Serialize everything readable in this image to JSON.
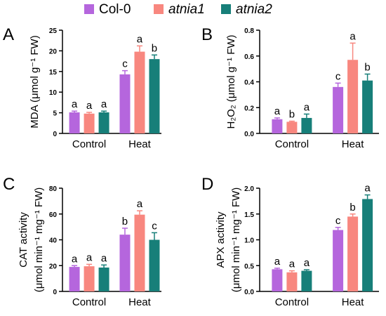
{
  "legend": {
    "entries": [
      {
        "label": "Col-0",
        "italic": false,
        "color": "#b566dd"
      },
      {
        "label": "atnia1",
        "italic": true,
        "color": "#f8877f"
      },
      {
        "label": "atnia2",
        "italic": true,
        "color": "#177f79"
      }
    ]
  },
  "colors": {
    "col0": "#b566dd",
    "atnia1": "#f8877f",
    "atnia2": "#177f79",
    "axis": "#000000"
  },
  "chart_data": [
    {
      "panel": "A",
      "type": "bar",
      "categories": [
        "Control",
        "Heat"
      ],
      "series": [
        {
          "name": "Col-0",
          "values": [
            5.1,
            14.3
          ],
          "errors": [
            0.3,
            0.9
          ],
          "letters": [
            "a",
            "c"
          ]
        },
        {
          "name": "atnia1",
          "values": [
            4.8,
            19.8
          ],
          "errors": [
            0.3,
            1.4
          ],
          "letters": [
            "a",
            "a"
          ]
        },
        {
          "name": "atnia2",
          "values": [
            5.1,
            18.0
          ],
          "errors": [
            0.3,
            1.0
          ],
          "letters": [
            "a",
            "b"
          ]
        }
      ],
      "ylim": [
        0,
        25
      ],
      "yticks": [
        "0",
        "5",
        "10",
        "15",
        "20",
        "25"
      ],
      "ylabel_lines": [
        "MDA (μmol g⁻¹ FW)"
      ]
    },
    {
      "panel": "B",
      "type": "bar",
      "categories": [
        "Control",
        "Heat"
      ],
      "series": [
        {
          "name": "Col-0",
          "values": [
            0.11,
            0.36
          ],
          "errors": [
            0.01,
            0.03
          ],
          "letters": [
            "a",
            "c"
          ]
        },
        {
          "name": "atnia1",
          "values": [
            0.09,
            0.57
          ],
          "errors": [
            0.005,
            0.13
          ],
          "letters": [
            "b",
            "a"
          ]
        },
        {
          "name": "atnia2",
          "values": [
            0.12,
            0.41
          ],
          "errors": [
            0.03,
            0.05
          ],
          "letters": [
            "a",
            "b"
          ]
        }
      ],
      "ylim": [
        0,
        0.8
      ],
      "yticks": [
        "0.0",
        "0.2",
        "0.4",
        "0.6",
        "0.8"
      ],
      "ylabel_lines": [
        "H₂O₂ (μmol g⁻¹ FW)"
      ]
    },
    {
      "panel": "C",
      "type": "bar",
      "categories": [
        "Control",
        "Heat"
      ],
      "series": [
        {
          "name": "Col-0",
          "values": [
            19,
            44
          ],
          "errors": [
            1.0,
            5.0
          ],
          "letters": [
            "a",
            "b"
          ]
        },
        {
          "name": "atnia1",
          "values": [
            19.5,
            59.5
          ],
          "errors": [
            1.5,
            3.0
          ],
          "letters": [
            "a",
            "a"
          ]
        },
        {
          "name": "atnia2",
          "values": [
            18.5,
            40
          ],
          "errors": [
            2.0,
            5.5
          ],
          "letters": [
            "a",
            "c"
          ]
        }
      ],
      "ylim": [
        0,
        80
      ],
      "yticks": [
        "0",
        "20",
        "40",
        "60",
        "80"
      ],
      "ylabel_lines": [
        "CAT activity",
        "(μmol min⁻¹ mg⁻¹ FW)"
      ]
    },
    {
      "panel": "D",
      "type": "bar",
      "categories": [
        "Control",
        "Heat"
      ],
      "series": [
        {
          "name": "Col-0",
          "values": [
            0.43,
            1.19
          ],
          "errors": [
            0.02,
            0.05
          ],
          "letters": [
            "a",
            "c"
          ]
        },
        {
          "name": "atnia1",
          "values": [
            0.37,
            1.45
          ],
          "errors": [
            0.03,
            0.05
          ],
          "letters": [
            "a",
            "b"
          ]
        },
        {
          "name": "atnia2",
          "values": [
            0.4,
            1.79
          ],
          "errors": [
            0.02,
            0.08
          ],
          "letters": [
            "a",
            "a"
          ]
        }
      ],
      "ylim": [
        0,
        2.0
      ],
      "yticks": [
        "0.0",
        "0.5",
        "1.0",
        "1.5",
        "2.0"
      ],
      "ylabel_lines": [
        "APX activity",
        "(μmol min⁻¹ mg⁻¹ FW)"
      ]
    }
  ]
}
